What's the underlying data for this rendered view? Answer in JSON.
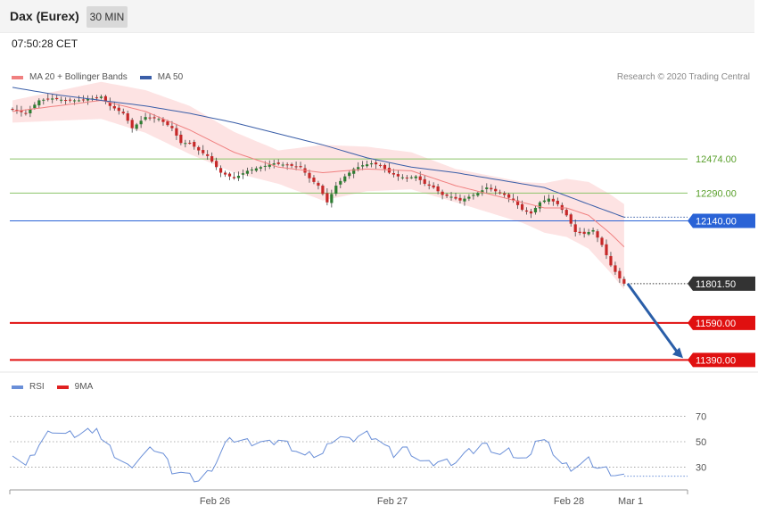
{
  "header": {
    "title": "Dax (Eurex)",
    "timeframe": "30 MIN"
  },
  "timestamp": "07:50:28 CET",
  "credit": "Research © 2020 Trading Central",
  "legend_main": [
    {
      "label": "MA 20 + Bollinger Bands",
      "color": "#f08080"
    },
    {
      "label": "MA 50",
      "color": "#3a5ea8"
    }
  ],
  "legend_rsi": [
    {
      "label": "RSI",
      "color": "#6a8fd8"
    },
    {
      "label": "9MA",
      "color": "#e02020"
    }
  ],
  "colors": {
    "bull": "#2e7d32",
    "bear": "#c62828",
    "band": "#fde3e3",
    "ma20": "#f08080",
    "ma50": "#3a5ea8",
    "support_green": "#8cc46a",
    "pivot": "#2a63d6",
    "target": "#e01010",
    "last": "#333333",
    "rsi": "#6a8fd8",
    "arrow": "#2a5ea8"
  },
  "chart_data": [
    {
      "type": "candlestick",
      "title": "Dax (Eurex)",
      "timeframe": "30 MIN",
      "ylim": [
        11310,
        12850
      ],
      "x_tick_labels": [
        "Feb 26",
        "Feb 27",
        "Feb 28",
        "Mar 1"
      ],
      "levels": [
        {
          "value": 12474.0,
          "label": "12474.00",
          "kind": "resistance"
        },
        {
          "value": 12290.0,
          "label": "12290.00",
          "kind": "resistance"
        },
        {
          "value": 12140.0,
          "label": "12140.00",
          "kind": "pivot"
        },
        {
          "value": 11801.5,
          "label": "11801.50",
          "kind": "last"
        },
        {
          "value": 11590.0,
          "label": "11590.00",
          "kind": "support"
        },
        {
          "value": 11390.0,
          "label": "11390.00",
          "kind": "support"
        }
      ],
      "close_anchors": [
        [
          0,
          12740
        ],
        [
          3,
          12720
        ],
        [
          6,
          12790
        ],
        [
          9,
          12800
        ],
        [
          12,
          12790
        ],
        [
          15,
          12790
        ],
        [
          18,
          12800
        ],
        [
          20,
          12810
        ],
        [
          22,
          12760
        ],
        [
          25,
          12720
        ],
        [
          27,
          12640
        ],
        [
          30,
          12700
        ],
        [
          33,
          12690
        ],
        [
          36,
          12640
        ],
        [
          38,
          12560
        ],
        [
          40,
          12560
        ],
        [
          42,
          12520
        ],
        [
          44,
          12490
        ],
        [
          47,
          12400
        ],
        [
          50,
          12370
        ],
        [
          53,
          12410
        ],
        [
          56,
          12430
        ],
        [
          59,
          12450
        ],
        [
          62,
          12440
        ],
        [
          65,
          12430
        ],
        [
          67,
          12370
        ],
        [
          69,
          12330
        ],
        [
          71,
          12240
        ],
        [
          73,
          12330
        ],
        [
          75,
          12380
        ],
        [
          77,
          12420
        ],
        [
          79,
          12440
        ],
        [
          81,
          12450
        ],
        [
          83,
          12440
        ],
        [
          85,
          12400
        ],
        [
          87,
          12380
        ],
        [
          89,
          12370
        ],
        [
          91,
          12380
        ],
        [
          93,
          12340
        ],
        [
          95,
          12320
        ],
        [
          97,
          12280
        ],
        [
          99,
          12270
        ],
        [
          101,
          12250
        ],
        [
          103,
          12270
        ],
        [
          105,
          12290
        ],
        [
          107,
          12320
        ],
        [
          109,
          12300
        ],
        [
          111,
          12280
        ],
        [
          113,
          12250
        ],
        [
          115,
          12200
        ],
        [
          117,
          12180
        ],
        [
          119,
          12240
        ],
        [
          121,
          12260
        ],
        [
          123,
          12230
        ],
        [
          125,
          12170
        ],
        [
          127,
          12080
        ],
        [
          129,
          12070
        ],
        [
          131,
          12090
        ],
        [
          133,
          12010
        ],
        [
          135,
          11900
        ],
        [
          137,
          11830
        ],
        [
          138,
          11801.5
        ]
      ],
      "ma20_anchors": [
        [
          0,
          12730
        ],
        [
          10,
          12760
        ],
        [
          20,
          12790
        ],
        [
          30,
          12730
        ],
        [
          40,
          12630
        ],
        [
          50,
          12510
        ],
        [
          60,
          12430
        ],
        [
          70,
          12400
        ],
        [
          80,
          12420
        ],
        [
          90,
          12410
        ],
        [
          100,
          12330
        ],
        [
          110,
          12270
        ],
        [
          120,
          12210
        ],
        [
          125,
          12210
        ],
        [
          130,
          12170
        ],
        [
          135,
          12070
        ],
        [
          138,
          12000
        ]
      ],
      "band_half_width": [
        [
          0,
          60
        ],
        [
          20,
          100
        ],
        [
          40,
          130
        ],
        [
          60,
          90
        ],
        [
          70,
          150
        ],
        [
          80,
          120
        ],
        [
          90,
          100
        ],
        [
          100,
          90
        ],
        [
          115,
          110
        ],
        [
          130,
          180
        ],
        [
          138,
          230
        ]
      ],
      "ma50_anchors": [
        [
          0,
          12860
        ],
        [
          10,
          12820
        ],
        [
          20,
          12790
        ],
        [
          30,
          12760
        ],
        [
          40,
          12720
        ],
        [
          50,
          12670
        ],
        [
          60,
          12610
        ],
        [
          70,
          12550
        ],
        [
          80,
          12480
        ],
        [
          90,
          12430
        ],
        [
          100,
          12400
        ],
        [
          110,
          12360
        ],
        [
          120,
          12320
        ],
        [
          130,
          12230
        ],
        [
          138,
          12160
        ]
      ],
      "projection": {
        "from": 11801.5,
        "to": 11390.0
      }
    },
    {
      "type": "line",
      "title": "RSI",
      "ylim": [
        15,
        85
      ],
      "ticks": [
        70,
        50,
        30
      ],
      "tick_labels": [
        "70",
        "50",
        "30"
      ],
      "rsi_anchors": [
        [
          0,
          42
        ],
        [
          3,
          30
        ],
        [
          6,
          48
        ],
        [
          9,
          60
        ],
        [
          12,
          55
        ],
        [
          15,
          56
        ],
        [
          17,
          58
        ],
        [
          19,
          62
        ],
        [
          20,
          52
        ],
        [
          23,
          40
        ],
        [
          26,
          30
        ],
        [
          29,
          38
        ],
        [
          32,
          45
        ],
        [
          34,
          40
        ],
        [
          36,
          28
        ],
        [
          38,
          26
        ],
        [
          40,
          22
        ],
        [
          42,
          20
        ],
        [
          44,
          25
        ],
        [
          46,
          35
        ],
        [
          48,
          48
        ],
        [
          50,
          52
        ],
        [
          53,
          50
        ],
        [
          56,
          50
        ],
        [
          58,
          48
        ],
        [
          60,
          52
        ],
        [
          62,
          48
        ],
        [
          64,
          44
        ],
        [
          66,
          38
        ],
        [
          68,
          40
        ],
        [
          70,
          40
        ],
        [
          72,
          52
        ],
        [
          74,
          54
        ],
        [
          76,
          50
        ],
        [
          78,
          55
        ],
        [
          80,
          56
        ],
        [
          82,
          54
        ],
        [
          84,
          46
        ],
        [
          86,
          40
        ],
        [
          88,
          45
        ],
        [
          90,
          42
        ],
        [
          92,
          35
        ],
        [
          94,
          32
        ],
        [
          96,
          35
        ],
        [
          98,
          34
        ],
        [
          100,
          35
        ],
        [
          102,
          40
        ],
        [
          104,
          43
        ],
        [
          106,
          48
        ],
        [
          108,
          45
        ],
        [
          110,
          40
        ],
        [
          112,
          42
        ],
        [
          114,
          38
        ],
        [
          116,
          35
        ],
        [
          118,
          52
        ],
        [
          120,
          50
        ],
        [
          122,
          42
        ],
        [
          124,
          32
        ],
        [
          126,
          30
        ],
        [
          128,
          32
        ],
        [
          130,
          35
        ],
        [
          132,
          30
        ],
        [
          134,
          28
        ],
        [
          136,
          25
        ],
        [
          138,
          23
        ]
      ]
    }
  ]
}
